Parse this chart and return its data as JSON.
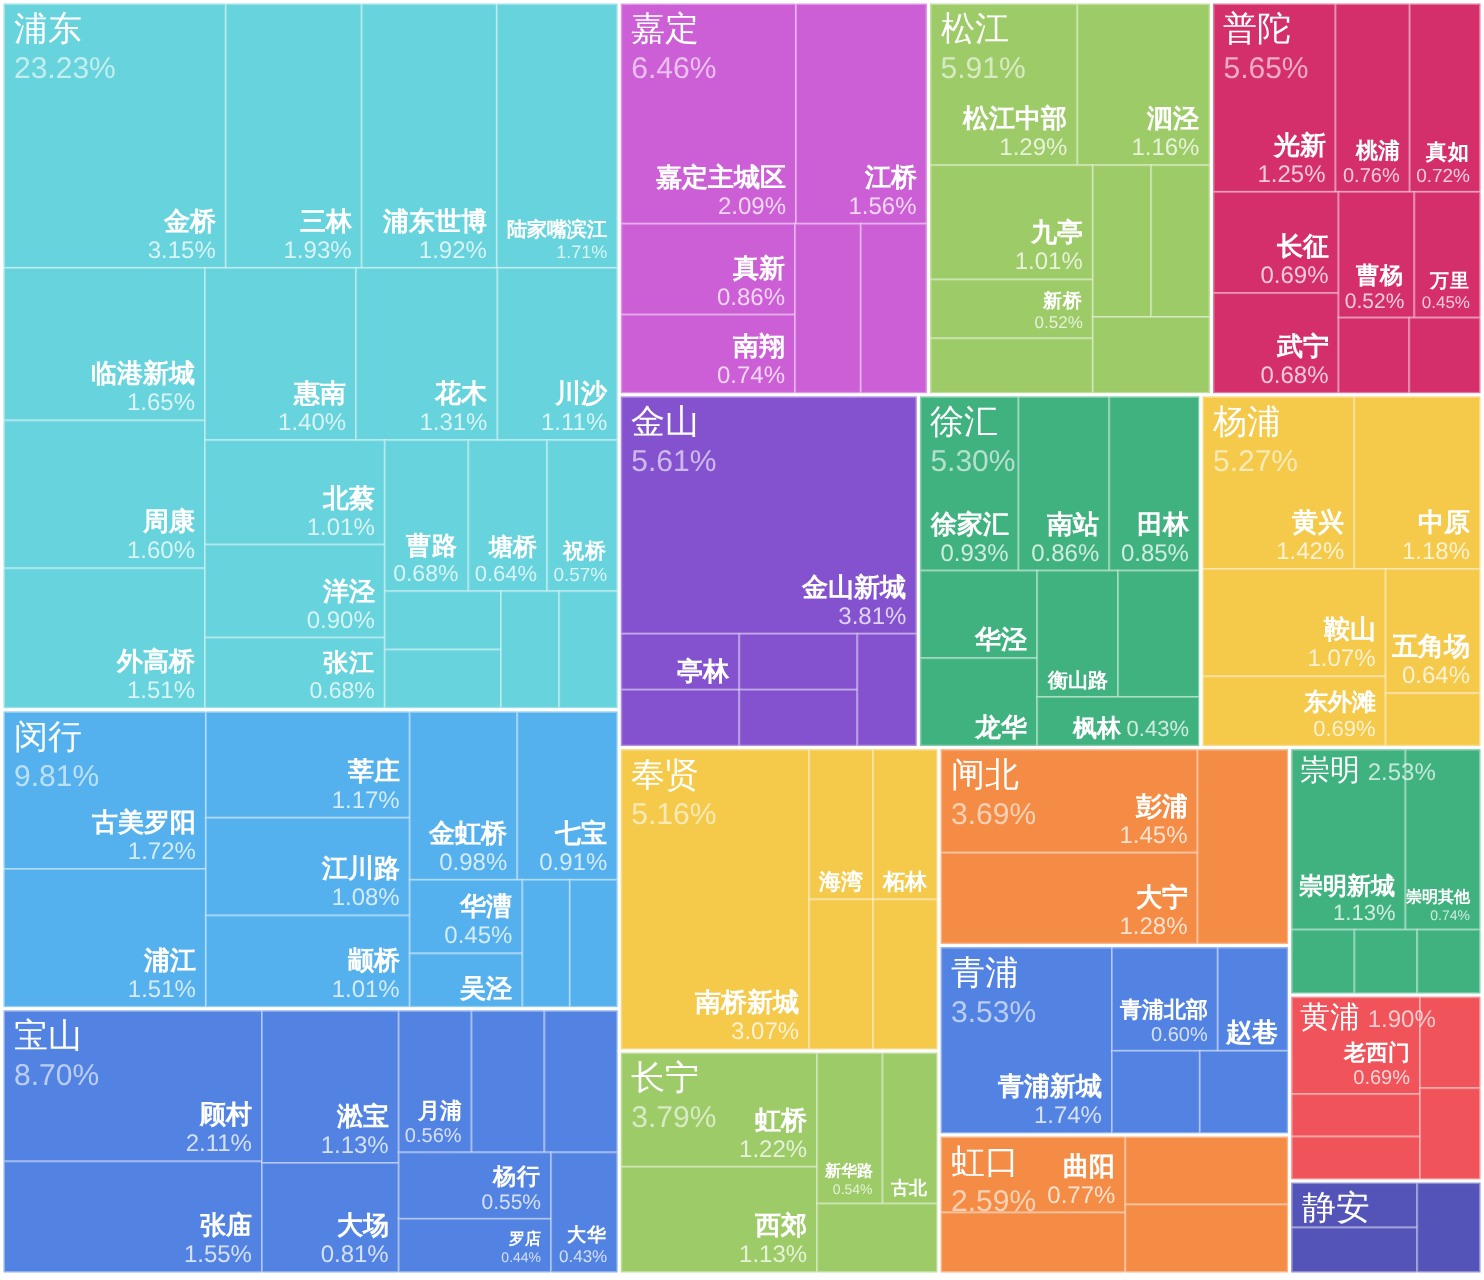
{
  "chart_data": [
    {
      "type": "other",
      "title": "浦东",
      "totals": [
        "23.23%"
      ],
      "color": "#67d3dc",
      "categories": [
        "金桥",
        "三林",
        "浦东世博",
        "陆家嘴滨江",
        "临港新城",
        "周康",
        "外高桥",
        "惠南",
        "花木",
        "川沙",
        "北蔡",
        "洋泾",
        "张江",
        "曹路",
        "塘桥",
        "祝桥",
        null,
        null,
        null,
        null
      ],
      "values": [
        3.15,
        1.93,
        1.92,
        1.71,
        1.65,
        1.6,
        1.51,
        1.4,
        1.31,
        1.11,
        1.01,
        0.9,
        0.68,
        0.68,
        0.64,
        0.57,
        null,
        null,
        null,
        null
      ],
      "value_labels": [
        "3.15%",
        "1.93%",
        "1.92%",
        "1.71%",
        "1.65%",
        "1.60%",
        "1.51%",
        "1.40%",
        "1.31%",
        "1.11%",
        "1.01%",
        "0.90%",
        "0.68%",
        "0.68%",
        "0.64%",
        "0.57%",
        null,
        null,
        null,
        null
      ]
    },
    {
      "type": "other",
      "title": "闵行",
      "totals": [
        "9.81%"
      ],
      "color": "#55b1ed",
      "categories": [
        "古美罗阳",
        "浦江",
        "莘庄",
        "江川路",
        "颛桥",
        "金虹桥",
        "七宝",
        "华漕",
        "吴泾",
        null,
        null
      ],
      "values": [
        1.72,
        1.51,
        1.17,
        1.08,
        1.01,
        0.98,
        0.91,
        0.45,
        null,
        null,
        null
      ],
      "value_labels": [
        "1.72%",
        "1.51%",
        "1.17%",
        "1.08%",
        "1.01%",
        "0.98%",
        "0.91%",
        "0.45%",
        null,
        null,
        null
      ]
    },
    {
      "type": "other",
      "title": "宝山",
      "totals": [
        "8.70%"
      ],
      "color": "#5383e2",
      "categories": [
        "顾村",
        "张庙",
        "淞宝",
        "大场",
        "月浦",
        null,
        null,
        "杨行",
        "罗店",
        "大华"
      ],
      "values": [
        2.11,
        1.55,
        1.13,
        0.81,
        0.56,
        null,
        null,
        0.55,
        0.44,
        0.43
      ],
      "value_labels": [
        "2.11%",
        "1.55%",
        "1.13%",
        "0.81%",
        "0.56%",
        null,
        null,
        "0.55%",
        "0.44%",
        "0.43%"
      ]
    },
    {
      "type": "other",
      "title": "嘉定",
      "totals": [
        "6.46%"
      ],
      "color": "#cc5fd6",
      "categories": [
        "嘉定主城区",
        "江桥",
        "真新",
        "南翔",
        null,
        null
      ],
      "values": [
        2.09,
        1.56,
        0.86,
        0.74,
        null,
        null
      ],
      "value_labels": [
        "2.09%",
        "1.56%",
        "0.86%",
        "0.74%",
        null,
        null
      ]
    },
    {
      "type": "other",
      "title": "松江",
      "totals": [
        "5.91%"
      ],
      "color": "#9dcb67",
      "categories": [
        "松江中部",
        "泗泾",
        "九亭",
        "新桥",
        null,
        null,
        null,
        null
      ],
      "values": [
        1.29,
        1.16,
        1.01,
        0.52,
        null,
        null,
        null,
        null
      ],
      "value_labels": [
        "1.29%",
        "1.16%",
        "1.01%",
        "0.52%",
        null,
        null,
        null,
        null
      ]
    },
    {
      "type": "other",
      "title": "普陀",
      "totals": [
        "5.65%"
      ],
      "color": "#d42f6b",
      "categories": [
        "光新",
        "桃浦",
        "真如",
        "长征",
        "武宁",
        "曹杨",
        "万里",
        null,
        null
      ],
      "values": [
        1.25,
        0.76,
        0.72,
        0.69,
        0.68,
        0.52,
        0.45,
        null,
        null
      ],
      "value_labels": [
        "1.25%",
        "0.76%",
        "0.72%",
        "0.69%",
        "0.68%",
        "0.52%",
        "0.45%",
        null,
        null
      ]
    },
    {
      "type": "other",
      "title": "金山",
      "totals": [
        "5.61%"
      ],
      "color": "#8452cf",
      "categories": [
        "金山新城",
        "亭林",
        null,
        null,
        null,
        null
      ],
      "values": [
        3.81,
        null,
        null,
        null,
        null,
        null
      ],
      "value_labels": [
        "3.81%",
        null,
        null,
        null,
        null,
        null
      ]
    },
    {
      "type": "other",
      "title": "徐汇",
      "totals": [
        "5.30%"
      ],
      "color": "#40b27f",
      "categories": [
        "徐家汇",
        "南站",
        "田林",
        "华泾",
        "龙华",
        "衡山路",
        null,
        "枫林"
      ],
      "values": [
        0.93,
        0.86,
        0.85,
        null,
        null,
        null,
        null,
        0.43
      ],
      "value_labels": [
        "0.93%",
        "0.86%",
        "0.85%",
        null,
        null,
        null,
        null,
        "0.43%"
      ]
    },
    {
      "type": "other",
      "title": "杨浦",
      "totals": [
        "5.27%"
      ],
      "color": "#f5c94a",
      "categories": [
        "黄兴",
        "中原",
        "鞍山",
        "东外滩",
        "五角场",
        null
      ],
      "values": [
        1.42,
        1.18,
        1.07,
        0.69,
        0.64,
        null
      ],
      "value_labels": [
        "1.42%",
        "1.18%",
        "1.07%",
        "0.69%",
        "0.64%",
        null
      ]
    },
    {
      "type": "other",
      "title": "奉贤",
      "totals": [
        "5.16%"
      ],
      "color": "#f5c94a",
      "categories": [
        "南桥新城",
        "海湾",
        "柘林",
        null,
        null
      ],
      "values": [
        3.07,
        null,
        null,
        null,
        null
      ],
      "value_labels": [
        "3.07%",
        null,
        null,
        null,
        null
      ]
    },
    {
      "type": "other",
      "title": "长宁",
      "totals": [
        "3.79%"
      ],
      "color": "#9dcb67",
      "categories": [
        "虹桥",
        "西郊",
        "新华路",
        "古北",
        null
      ],
      "values": [
        1.22,
        1.13,
        0.54,
        null,
        null
      ],
      "value_labels": [
        "1.22%",
        "1.13%",
        "0.54%",
        null,
        null
      ]
    },
    {
      "type": "other",
      "title": "闸北",
      "totals": [
        "3.69%"
      ],
      "color": "#f58c45",
      "categories": [
        "彭浦",
        "大宁",
        null
      ],
      "values": [
        1.45,
        1.28,
        null
      ],
      "value_labels": [
        "1.45%",
        "1.28%",
        null
      ]
    },
    {
      "type": "other",
      "title": "青浦",
      "totals": [
        "3.53%"
      ],
      "color": "#5383e2",
      "categories": [
        "青浦新城",
        "青浦北部",
        "赵巷",
        null,
        null
      ],
      "values": [
        1.74,
        0.6,
        null,
        null,
        null
      ],
      "value_labels": [
        "1.74%",
        "0.60%",
        null,
        null,
        null
      ]
    },
    {
      "type": "other",
      "title": "虹口",
      "totals": [
        "2.59%"
      ],
      "color": "#f58c45",
      "categories": [
        "曲阳",
        null,
        null,
        null
      ],
      "values": [
        0.77,
        null,
        null,
        null
      ],
      "value_labels": [
        "0.77%",
        null,
        null,
        null
      ]
    },
    {
      "type": "other",
      "title": "崇明",
      "totals": [
        "2.53%"
      ],
      "color": "#40b27f",
      "categories": [
        "崇明新城",
        "崇明其他",
        null,
        null,
        null
      ],
      "values": [
        1.13,
        0.74,
        null,
        null,
        null
      ],
      "value_labels": [
        "1.13%",
        "0.74%",
        null,
        null,
        null
      ]
    },
    {
      "type": "other",
      "title": "黄浦",
      "totals": [
        "1.90%"
      ],
      "color": "#f0535a",
      "categories": [
        "老西门",
        null,
        null,
        null,
        null
      ],
      "values": [
        0.69,
        null,
        null,
        null,
        null
      ],
      "value_labels": [
        "0.69%",
        null,
        null,
        null,
        null
      ]
    },
    {
      "type": "other",
      "title": "静安",
      "color": "#5453b8",
      "categories": [
        null,
        null,
        null
      ],
      "values": [
        null,
        null,
        null
      ]
    }
  ]
}
